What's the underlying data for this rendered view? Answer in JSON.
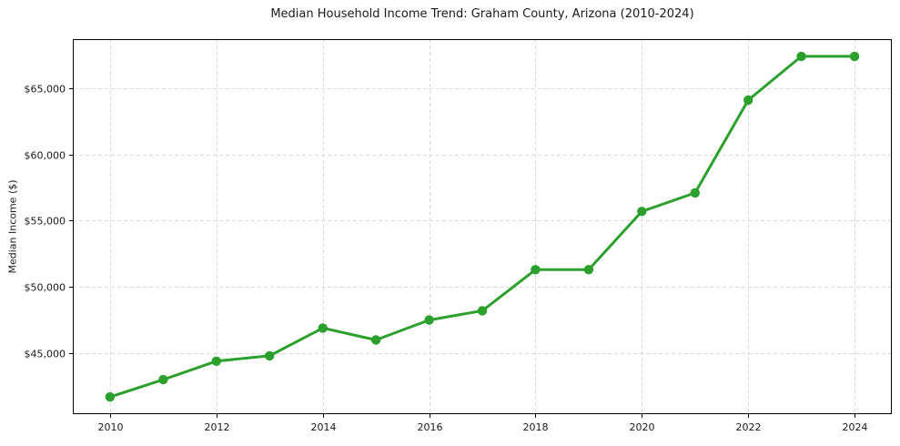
{
  "chart_data": {
    "type": "line",
    "title": "Median Household Income Trend: Graham County, Arizona (2010-2024)",
    "ylabel": "Median Income ($)",
    "xlabel": "",
    "x": [
      2010,
      2011,
      2012,
      2013,
      2014,
      2015,
      2016,
      2017,
      2018,
      2019,
      2020,
      2021,
      2022,
      2023,
      2024
    ],
    "series": [
      {
        "name": "Median Household Income",
        "values": [
          41700,
          43000,
          44400,
          44800,
          46900,
          46000,
          47500,
          48200,
          51300,
          51300,
          55700,
          57100,
          64100,
          67400,
          67400
        ],
        "color": "#2ca02c"
      }
    ],
    "xlim": [
      2009.3,
      2024.7
    ],
    "ylim": [
      40400,
      68700
    ],
    "x_ticks": [
      2010,
      2012,
      2014,
      2016,
      2018,
      2020,
      2022,
      2024
    ],
    "y_ticks": [
      45000,
      50000,
      55000,
      60000,
      65000
    ],
    "y_tick_labels": [
      "$45,000",
      "$50,000",
      "$55,000",
      "$60,000",
      "$65,000"
    ],
    "grid": true,
    "grid_color": "#d9d9d9",
    "frame_color": "#000000",
    "tick_text_color": "#1a1a1a",
    "marker": "circle",
    "legend_position": "none"
  }
}
